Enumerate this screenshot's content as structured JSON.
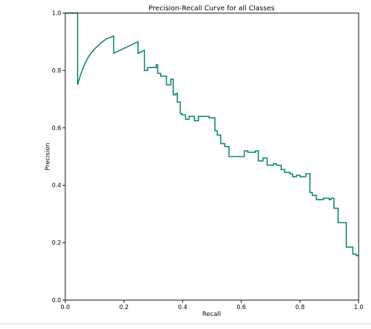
{
  "chart_data": {
    "type": "line",
    "title": "Precision-Recall Curve for all Classes",
    "xlabel": "Recall",
    "ylabel": "Precision",
    "xlim": [
      0.0,
      1.0
    ],
    "ylim": [
      0.0,
      1.0
    ],
    "xticks": [
      "0.0",
      "0.2",
      "0.4",
      "0.6",
      "0.8",
      "1.0"
    ],
    "yticks": [
      "0.0",
      "0.2",
      "0.4",
      "0.6",
      "0.8",
      "1.0"
    ],
    "grid": false,
    "legend": "none",
    "line_color": "#00856b",
    "series": [
      {
        "x": [
          0.0,
          0.042,
          0.042,
          0.052,
          0.065,
          0.08,
          0.1,
          0.12,
          0.14,
          0.165,
          0.165,
          0.248,
          0.248,
          0.27,
          0.27,
          0.28,
          0.28,
          0.31,
          0.31,
          0.315,
          0.315,
          0.325,
          0.325,
          0.345,
          0.345,
          0.36,
          0.36,
          0.368,
          0.368,
          0.376,
          0.376,
          0.382,
          0.382,
          0.392,
          0.392,
          0.398,
          0.398,
          0.41,
          0.41,
          0.422,
          0.422,
          0.44,
          0.44,
          0.454,
          0.454,
          0.49,
          0.49,
          0.51,
          0.51,
          0.518,
          0.518,
          0.53,
          0.53,
          0.544,
          0.544,
          0.558,
          0.558,
          0.61,
          0.61,
          0.622,
          0.622,
          0.648,
          0.648,
          0.658,
          0.658,
          0.674,
          0.674,
          0.688,
          0.688,
          0.71,
          0.71,
          0.72,
          0.72,
          0.736,
          0.736,
          0.748,
          0.748,
          0.766,
          0.766,
          0.775,
          0.775,
          0.788,
          0.788,
          0.8,
          0.8,
          0.82,
          0.82,
          0.834,
          0.834,
          0.842,
          0.842,
          0.856,
          0.856,
          0.88,
          0.88,
          0.9,
          0.9,
          0.906,
          0.906,
          0.916,
          0.916,
          0.93,
          0.93,
          0.958,
          0.958,
          0.98,
          0.98,
          0.992,
          0.992,
          1.0
        ],
        "y": [
          1.0,
          1.0,
          0.75,
          0.785,
          0.82,
          0.85,
          0.875,
          0.895,
          0.91,
          0.92,
          0.86,
          0.9,
          0.86,
          0.87,
          0.8,
          0.8,
          0.81,
          0.81,
          0.82,
          0.82,
          0.79,
          0.79,
          0.78,
          0.78,
          0.75,
          0.75,
          0.77,
          0.77,
          0.715,
          0.715,
          0.72,
          0.72,
          0.69,
          0.69,
          0.65,
          0.65,
          0.645,
          0.645,
          0.63,
          0.63,
          0.64,
          0.64,
          0.625,
          0.625,
          0.64,
          0.64,
          0.635,
          0.635,
          0.59,
          0.59,
          0.575,
          0.575,
          0.545,
          0.545,
          0.535,
          0.535,
          0.5,
          0.5,
          0.52,
          0.52,
          0.515,
          0.515,
          0.52,
          0.52,
          0.485,
          0.485,
          0.495,
          0.495,
          0.47,
          0.47,
          0.475,
          0.475,
          0.47,
          0.47,
          0.455,
          0.455,
          0.445,
          0.445,
          0.44,
          0.44,
          0.43,
          0.43,
          0.435,
          0.435,
          0.43,
          0.43,
          0.44,
          0.44,
          0.375,
          0.375,
          0.365,
          0.365,
          0.35,
          0.35,
          0.355,
          0.355,
          0.35,
          0.35,
          0.355,
          0.355,
          0.32,
          0.32,
          0.27,
          0.27,
          0.185,
          0.185,
          0.16,
          0.16,
          0.155,
          0.155
        ]
      }
    ]
  }
}
